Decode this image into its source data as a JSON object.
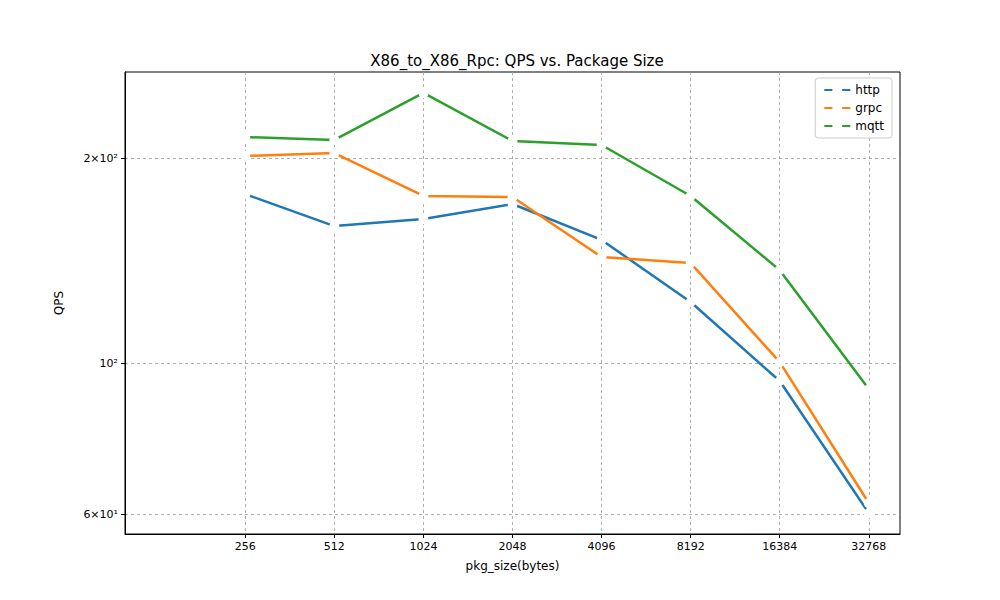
{
  "chart_data": {
    "type": "line",
    "title": "X86_to_X86_Rpc: QPS vs. Package Size",
    "x_label": "pkg_size(bytes)",
    "y_label": "QPS",
    "x": [
      256,
      512,
      1024,
      2048,
      4096,
      8192,
      16384,
      32768
    ],
    "series": [
      {
        "name": "http",
        "color": "#1f77b4",
        "values": [
          177,
          158.9,
          162.7,
          171.2,
          151.6,
          122.9,
          94.1,
          60.2
        ]
      },
      {
        "name": "grpc",
        "color": "#ff7f0e",
        "values": [
          201.4,
          203.4,
          175.9,
          175.3,
          143.1,
          140.2,
          100.3,
          62.3
        ]
      },
      {
        "name": "mqtt",
        "color": "#2ca02c",
        "values": [
          214.7,
          212.6,
          249.2,
          211.8,
          209.0,
          175.9,
          136.9,
          91.6
        ]
      }
    ],
    "log": true,
    "xlim": [
      100.4,
      41771
    ],
    "xticks": [
      256,
      512,
      1024,
      2048,
      4096,
      8192,
      16384,
      32768
    ],
    "ylim": [
      56.1,
      267.5
    ],
    "yticks": [
      {
        "value": 60,
        "label": "6×10¹"
      },
      {
        "value": 100,
        "label": "10²"
      },
      {
        "value": 200,
        "label": "2×10²"
      }
    ],
    "grid": true,
    "legend": "upper right",
    "marker": "o",
    "line_style": "solid"
  }
}
